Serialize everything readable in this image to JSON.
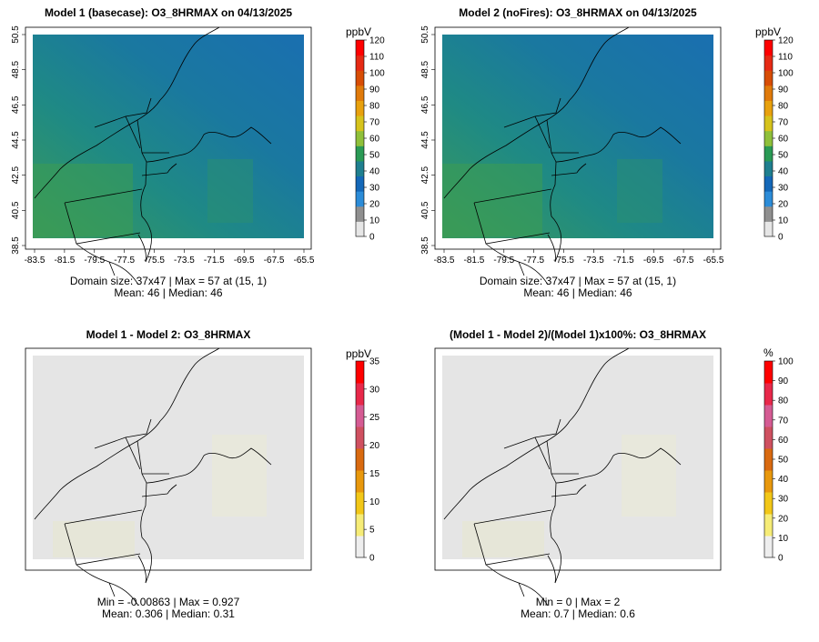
{
  "panels": [
    {
      "id": "p1",
      "title": "Model 1 (basecase): O3_8HRMAX on 04/13/2025",
      "stats_line1": "Domain size: 37x47 | Max = 57 at (15, 1)",
      "stats_line2": "Mean: 46 |  Median: 46",
      "unit": "ppbV",
      "legend_ticks": [
        "0",
        "10",
        "20",
        "30",
        "40",
        "50",
        "60",
        "70",
        "80",
        "90",
        "100",
        "110",
        "120"
      ],
      "x_ticks": [
        "-83.5",
        "-81.5",
        "-79.5",
        "-77.5",
        "-75.5",
        "-73.5",
        "-71.5",
        "-69.5",
        "-67.5",
        "-65.5"
      ],
      "y_ticks": [
        "38.5",
        "40.5",
        "42.5",
        "44.5",
        "46.5",
        "48.5",
        "50.5"
      ],
      "fill": "#1f7f8f"
    },
    {
      "id": "p2",
      "title": "Model 2 (noFires): O3_8HRMAX on 04/13/2025",
      "stats_line1": "Domain size: 37x47 | Max = 57 at (15, 1)",
      "stats_line2": "Mean: 46 |  Median: 46",
      "unit": "ppbV",
      "legend_ticks": [
        "0",
        "10",
        "20",
        "30",
        "40",
        "50",
        "60",
        "70",
        "80",
        "90",
        "100",
        "110",
        "120"
      ],
      "x_ticks": [
        "-83.5",
        "-81.5",
        "-79.5",
        "-77.5",
        "-75.5",
        "-73.5",
        "-71.5",
        "-69.5",
        "-67.5",
        "-65.5"
      ],
      "y_ticks": [
        "38.5",
        "40.5",
        "42.5",
        "44.5",
        "46.5",
        "48.5",
        "50.5"
      ],
      "fill": "#1f7f8f"
    },
    {
      "id": "p3",
      "title": "Model 1 - Model 2: O3_8HRMAX",
      "stats_line1": "Min = -0.00863 | Max = 0.927",
      "stats_line2": "Mean: 0.306 |  Median: 0.31",
      "unit": "ppbV",
      "legend_ticks": [
        "0",
        "5",
        "10",
        "15",
        "20",
        "25",
        "30",
        "35"
      ],
      "fill": "#e5e5e5"
    },
    {
      "id": "p4",
      "title": "(Model 1 - Model 2)/(Model 1)x100%: O3_8HRMAX",
      "stats_line1": "Min = 0 | Max = 2",
      "stats_line2": "Mean: 0.7 |  Median: 0.6",
      "unit": "%",
      "legend_ticks": [
        "0",
        "10",
        "20",
        "30",
        "40",
        "50",
        "60",
        "70",
        "80",
        "90",
        "100"
      ],
      "fill": "#e5e5e5"
    }
  ],
  "colors": {
    "model_ramp": [
      "#e6e6e6",
      "#8f8f8f",
      "#2c8cd8",
      "#1468b8",
      "#1f7f8f",
      "#2a9a55",
      "#8fc03a",
      "#d6c31c",
      "#e8a10e",
      "#e07a0a",
      "#d84d05",
      "#e62a14",
      "#ff0000"
    ],
    "diff_ramp": [
      "#eeeeee",
      "#f6ec77",
      "#f2c718",
      "#e8980d",
      "#d96a10",
      "#cf5060",
      "#d55b93",
      "#e8284a",
      "#ff0000"
    ]
  }
}
